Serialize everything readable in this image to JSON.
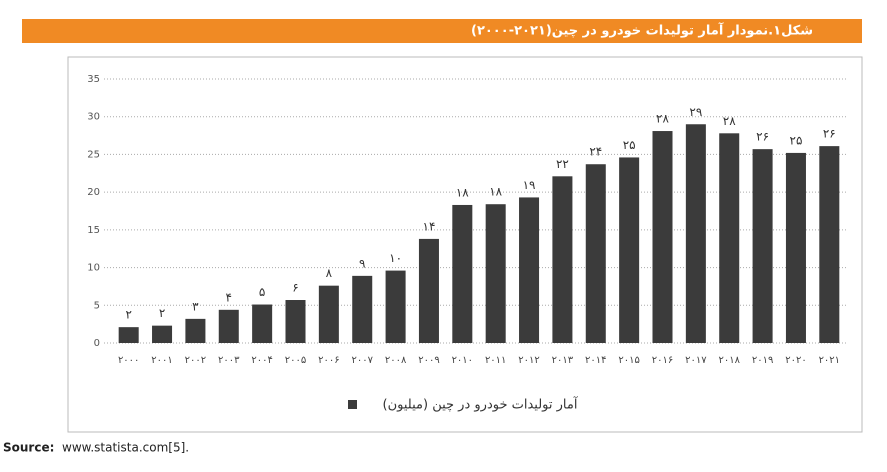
{
  "chart_data": {
    "type": "bar",
    "title": "شکل۱.نمودار آمار تولیدات خودرو در چین(۲۰۲۱-۲۰۰۰)",
    "categories": [
      "۲۰۰۰",
      "۲۰۰۱",
      "۲۰۰۲",
      "۲۰۰۳",
      "۲۰۰۴",
      "۲۰۰۵",
      "۲۰۰۶",
      "۲۰۰۷",
      "۲۰۰۸",
      "۲۰۰۹",
      "۲۰۱۰",
      "۲۰۱۱",
      "۲۰۱۲",
      "۲۰۱۳",
      "۲۰۱۴",
      "۲۰۱۵",
      "۲۰۱۶",
      "۲۰۱۷",
      "۲۰۱۸",
      "۲۰۱۹",
      "۲۰۲۰",
      "۲۰۲۱"
    ],
    "series": [
      {
        "name": "آمار تولیدات خودرو در چین (میلیون)",
        "color": "#3b3b3b",
        "values": [
          2.1,
          2.3,
          3.2,
          4.4,
          5.1,
          5.7,
          7.6,
          8.9,
          9.6,
          13.8,
          18.3,
          18.4,
          19.3,
          22.1,
          23.7,
          24.6,
          28.1,
          29.0,
          27.8,
          25.7,
          25.2,
          26.1
        ],
        "value_labels": [
          "۲",
          "۲",
          "۳",
          "۴",
          "۵",
          "۶",
          "۸",
          "۹",
          "۱۰",
          "۱۴",
          "۱۸",
          "۱۸",
          "۱۹",
          "۲۲",
          "۲۴",
          "۲۵",
          "۲۸",
          "۲۹",
          "۲۸",
          "۲۶",
          "۲۵",
          "۲۶"
        ]
      }
    ],
    "ylim": [
      0,
      35
    ],
    "yticks": [
      0,
      5,
      10,
      15,
      20,
      25,
      30,
      35
    ],
    "grid": true,
    "source_label": "Source:",
    "source": "www.statista.com[5]."
  }
}
